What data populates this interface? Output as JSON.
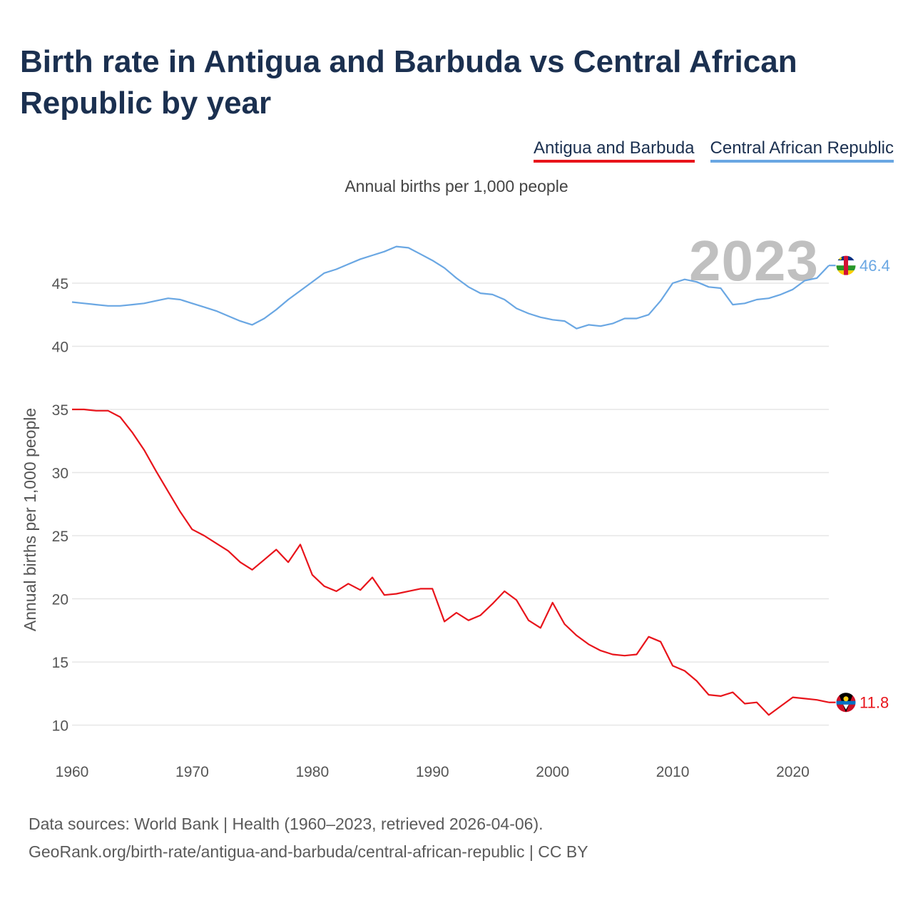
{
  "header": {
    "title": "Birth rate in Antigua and Barbuda vs Central African Republic by year"
  },
  "legend": {
    "items": [
      "Antigua and Barbuda",
      "Central African Republic"
    ]
  },
  "chart_data": {
    "type": "line",
    "title": "Birth rate in Antigua and Barbuda vs Central African Republic by year",
    "subtitle": "Annual births per 1,000 people",
    "ylabel": "Annual births per 1,000 people",
    "xlabel": "",
    "year_label": "2023",
    "xlim": [
      1960,
      2023
    ],
    "ylim": [
      8,
      48.5
    ],
    "x_ticks": [
      1960,
      1970,
      1980,
      1990,
      2000,
      2010,
      2020
    ],
    "y_ticks": [
      10,
      15,
      20,
      25,
      30,
      35,
      40,
      45
    ],
    "grid": true,
    "x": [
      1960,
      1961,
      1962,
      1963,
      1964,
      1965,
      1966,
      1967,
      1968,
      1969,
      1970,
      1971,
      1972,
      1973,
      1974,
      1975,
      1976,
      1977,
      1978,
      1979,
      1980,
      1981,
      1982,
      1983,
      1984,
      1985,
      1986,
      1987,
      1988,
      1989,
      1990,
      1991,
      1992,
      1993,
      1994,
      1995,
      1996,
      1997,
      1998,
      1999,
      2000,
      2001,
      2002,
      2003,
      2004,
      2005,
      2006,
      2007,
      2008,
      2009,
      2010,
      2011,
      2012,
      2013,
      2014,
      2015,
      2016,
      2017,
      2018,
      2019,
      2020,
      2021,
      2022,
      2023
    ],
    "series": [
      {
        "name": "Antigua and Barbuda",
        "color": "#e8141b",
        "end_label": "11.8",
        "values": [
          35.0,
          35.0,
          34.9,
          34.9,
          34.4,
          33.2,
          31.8,
          30.1,
          28.5,
          26.9,
          25.5,
          25.0,
          24.4,
          23.8,
          22.9,
          22.3,
          23.1,
          23.9,
          22.9,
          24.3,
          21.9,
          21.0,
          20.6,
          21.2,
          20.7,
          21.7,
          20.3,
          20.4,
          20.6,
          20.8,
          20.8,
          18.2,
          18.9,
          18.3,
          18.7,
          19.6,
          20.6,
          19.9,
          18.3,
          17.7,
          19.7,
          18.0,
          17.1,
          16.4,
          15.9,
          15.6,
          15.5,
          15.6,
          17.0,
          16.6,
          14.7,
          14.3,
          13.5,
          12.4,
          12.3,
          12.6,
          11.7,
          11.8,
          10.8,
          11.5,
          12.2,
          12.1,
          12.0,
          11.8
        ]
      },
      {
        "name": "Central African Republic",
        "color": "#6aa7e3",
        "end_label": "46.4",
        "values": [
          43.5,
          43.4,
          43.3,
          43.2,
          43.2,
          43.3,
          43.4,
          43.6,
          43.8,
          43.7,
          43.4,
          43.1,
          42.8,
          42.4,
          42.0,
          41.7,
          42.2,
          42.9,
          43.7,
          44.4,
          45.1,
          45.8,
          46.1,
          46.5,
          46.9,
          47.2,
          47.5,
          47.9,
          47.8,
          47.3,
          46.8,
          46.2,
          45.4,
          44.7,
          44.2,
          44.1,
          43.7,
          43.0,
          42.6,
          42.3,
          42.1,
          42.0,
          41.4,
          41.7,
          41.6,
          41.8,
          42.2,
          42.2,
          42.5,
          43.6,
          45.0,
          45.3,
          45.1,
          44.7,
          44.6,
          43.3,
          43.4,
          43.7,
          43.8,
          44.1,
          44.5,
          45.2,
          45.4,
          46.4
        ]
      }
    ]
  },
  "source": {
    "line1": "Data sources: World Bank | Health (1960–2023, retrieved 2026-04-06).",
    "line2": "GeoRank.org/birth-rate/antigua-and-barbuda/central-african-republic | CC BY"
  }
}
